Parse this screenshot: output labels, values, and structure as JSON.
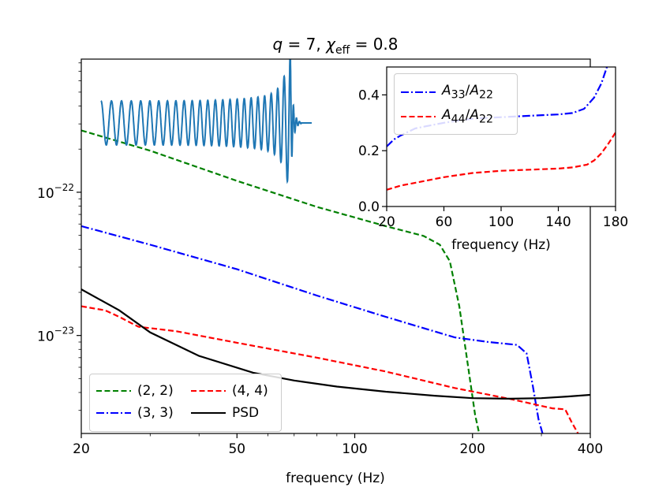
{
  "chart_data": [
    {
      "type": "line",
      "title": "q = 7, χeff = 0.8",
      "title_parts": {
        "q": "q",
        "q_eq": " = 7, ",
        "chi": "χ",
        "chi_sub": "eff",
        "chi_eq": " = 0.8"
      },
      "xlabel": "frequency (Hz)",
      "ylabel": "",
      "xscale": "log",
      "yscale": "log",
      "xlim": [
        20,
        400
      ],
      "ylim": [
        2.07e-24,
        8.5e-22
      ],
      "xticks": [
        20,
        50,
        100,
        200,
        400
      ],
      "xtick_labels": [
        "20",
        "50",
        "100",
        "200",
        "400"
      ],
      "yticks": [
        1e-23,
        1e-22
      ],
      "ytick_labels": [
        {
          "base": "10",
          "exp": "−23"
        },
        {
          "base": "10",
          "exp": "−22"
        }
      ],
      "legend_position": "lower-left",
      "series": [
        {
          "name": "(2, 2)",
          "color": "#008000",
          "dash": "dashed",
          "x": [
            20,
            30,
            50,
            80,
            120,
            150,
            165,
            175,
            185,
            195,
            203,
            208
          ],
          "y": [
            2.7e-22,
            1.95e-22,
            1.2e-22,
            7.9e-23,
            5.8e-23,
            4.95e-23,
            4.3e-23,
            3.3e-23,
            1.6e-23,
            6e-24,
            2.8e-24,
            2.07e-24
          ]
        },
        {
          "name": "(3, 3)",
          "color": "#0000ff",
          "dash": "dashdot",
          "x": [
            20,
            30,
            50,
            80,
            120,
            180,
            220,
            260,
            275,
            285,
            295,
            302
          ],
          "y": [
            5.8e-23,
            4.3e-23,
            2.9e-23,
            1.9e-23,
            1.35e-23,
            9.7e-24,
            9e-24,
            8.6e-24,
            7.5e-24,
            4.5e-24,
            2.6e-24,
            2.07e-24
          ]
        },
        {
          "name": "(4, 4)",
          "color": "#ff0000",
          "dash": "dashed",
          "x": [
            20,
            23,
            25,
            28,
            35,
            50,
            80,
            120,
            180,
            250,
            320,
            345,
            358,
            372
          ],
          "y": [
            1.6e-23,
            1.5e-23,
            1.35e-23,
            1.15e-23,
            1.07e-23,
            8.9e-24,
            7e-24,
            5.6e-24,
            4.3e-24,
            3.6e-24,
            3.1e-24,
            3.05e-24,
            2.5e-24,
            2.07e-24
          ]
        },
        {
          "name": "PSD",
          "color": "#000000",
          "dash": "solid",
          "x": [
            20,
            25,
            30,
            40,
            55,
            70,
            90,
            120,
            160,
            200,
            250,
            300,
            350,
            400
          ],
          "y": [
            2.1e-23,
            1.5e-23,
            1.05e-23,
            7.2e-24,
            5.5e-24,
            4.85e-24,
            4.4e-24,
            4.05e-24,
            3.8e-24,
            3.65e-24,
            3.62e-24,
            3.65e-24,
            3.75e-24,
            3.85e-24
          ]
        }
      ]
    },
    {
      "type": "line",
      "title": "",
      "xlabel": "frequency (Hz)",
      "ylabel": "",
      "xlim": [
        20,
        180
      ],
      "ylim": [
        0.0,
        0.5
      ],
      "xticks": [
        20,
        60,
        100,
        140,
        180
      ],
      "xtick_labels": [
        "20",
        "60",
        "100",
        "140",
        "180"
      ],
      "yticks": [
        0.0,
        0.2,
        0.4
      ],
      "ytick_labels": [
        "0.0",
        "0.2",
        "0.4"
      ],
      "legend_position": "top-left",
      "series": [
        {
          "name": "A33/A22",
          "label_parts": {
            "a": "A",
            "a_sub": "33",
            "sep": "/",
            "b": "A",
            "b_sub": "22"
          },
          "color": "#0000ff",
          "dash": "dashdot",
          "x": [
            20,
            25,
            30,
            40,
            50,
            60,
            80,
            100,
            120,
            140,
            150,
            158,
            165,
            170,
            174
          ],
          "y": [
            0.215,
            0.24,
            0.255,
            0.28,
            0.29,
            0.3,
            0.315,
            0.32,
            0.325,
            0.33,
            0.335,
            0.35,
            0.39,
            0.44,
            0.5
          ]
        },
        {
          "name": "A44/A22",
          "label_parts": {
            "a": "A",
            "a_sub": "44",
            "sep": "/",
            "b": "A",
            "b_sub": "22"
          },
          "color": "#ff0000",
          "dash": "dashed",
          "x": [
            20,
            30,
            40,
            60,
            80,
            100,
            120,
            140,
            150,
            160,
            165,
            170,
            175,
            180
          ],
          "y": [
            0.06,
            0.075,
            0.085,
            0.105,
            0.12,
            0.128,
            0.132,
            0.136,
            0.14,
            0.15,
            0.165,
            0.19,
            0.225,
            0.265
          ]
        }
      ]
    }
  ],
  "waveform": {
    "color": "#1f77b4",
    "cycles": 24
  }
}
